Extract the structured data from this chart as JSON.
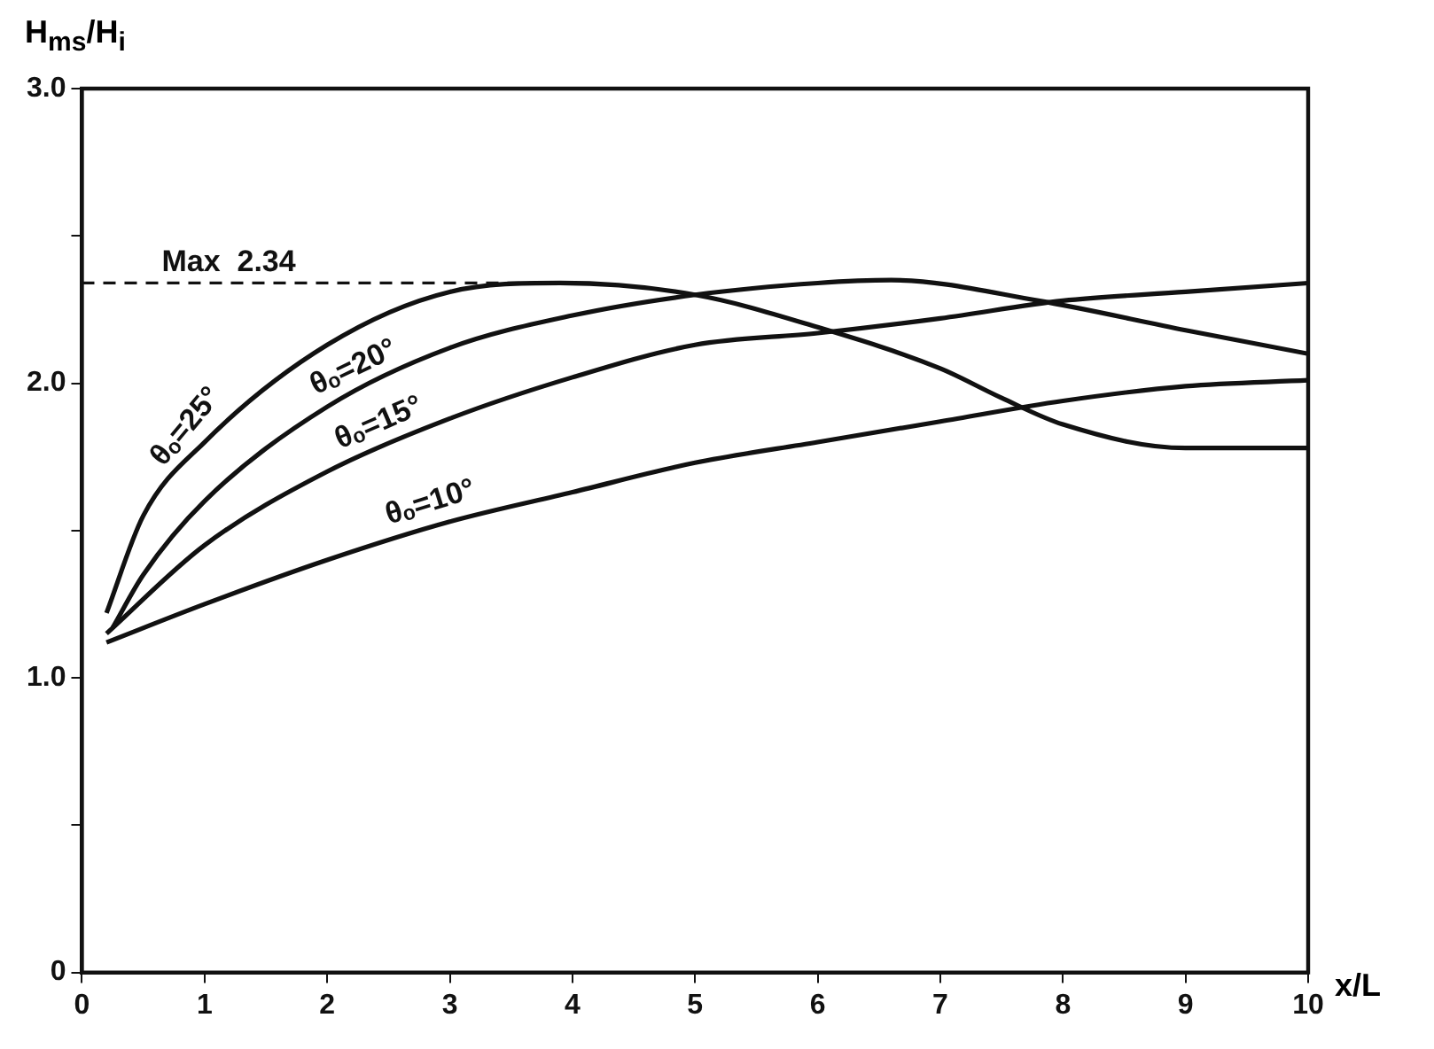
{
  "chart_data": {
    "type": "line",
    "xlabel": "x/L",
    "ylabel": "H$_{ms}$/H$_{i}$",
    "xlim": [
      0,
      10
    ],
    "ylim": [
      0,
      3
    ],
    "xticks": [
      0,
      1,
      2,
      3,
      4,
      5,
      6,
      7,
      8,
      9,
      10
    ],
    "yticks": [
      0,
      {
        "value": 0.5,
        "label": null
      },
      {
        "value": 1,
        "label": "1.0"
      },
      {
        "value": 1.5,
        "label": null
      },
      {
        "value": 2,
        "label": "2.0"
      },
      {
        "value": 2.5,
        "label": null
      },
      {
        "value": 3,
        "label": "3.0"
      }
    ],
    "grid": false,
    "legend": false,
    "marker": "none",
    "line_style": "solid",
    "series": [
      {
        "name": "θₒ=25°",
        "color": "#111111",
        "x": [
          0.2,
          0.5,
          1,
          2,
          3,
          3.9,
          5,
          6,
          7,
          7.5,
          8,
          9,
          10
        ],
        "values": [
          1.22,
          1.55,
          1.8,
          2.13,
          2.31,
          2.34,
          2.3,
          2.19,
          2.05,
          1.95,
          1.86,
          1.78,
          1.78
        ]
      },
      {
        "name": "θₒ=20°",
        "color": "#111111",
        "x": [
          0.25,
          0.5,
          1,
          2,
          3,
          4,
          5,
          6,
          6.6,
          7.8,
          9,
          10
        ],
        "values": [
          1.17,
          1.35,
          1.6,
          1.92,
          2.12,
          2.23,
          2.3,
          2.34,
          2.35,
          2.28,
          2.18,
          2.1
        ]
      },
      {
        "name": "θₒ=15°",
        "color": "#111111",
        "x": [
          0.2,
          1,
          2,
          3,
          4,
          5,
          6,
          7,
          8,
          9,
          10
        ],
        "values": [
          1.15,
          1.45,
          1.7,
          1.88,
          2.02,
          2.13,
          2.17,
          2.22,
          2.28,
          2.31,
          2.34
        ]
      },
      {
        "name": "θₒ=10°",
        "color": "#111111",
        "x": [
          0.2,
          1,
          2,
          3,
          4,
          5,
          6,
          7,
          8,
          9,
          10
        ],
        "values": [
          1.12,
          1.25,
          1.4,
          1.53,
          1.63,
          1.73,
          1.8,
          1.87,
          1.94,
          1.99,
          2.01
        ]
      }
    ],
    "ref_lines": [
      {
        "axis": "y",
        "value": 2.34,
        "label": "Max  2.34",
        "line_style": "dashed",
        "color": "#111111"
      }
    ]
  }
}
